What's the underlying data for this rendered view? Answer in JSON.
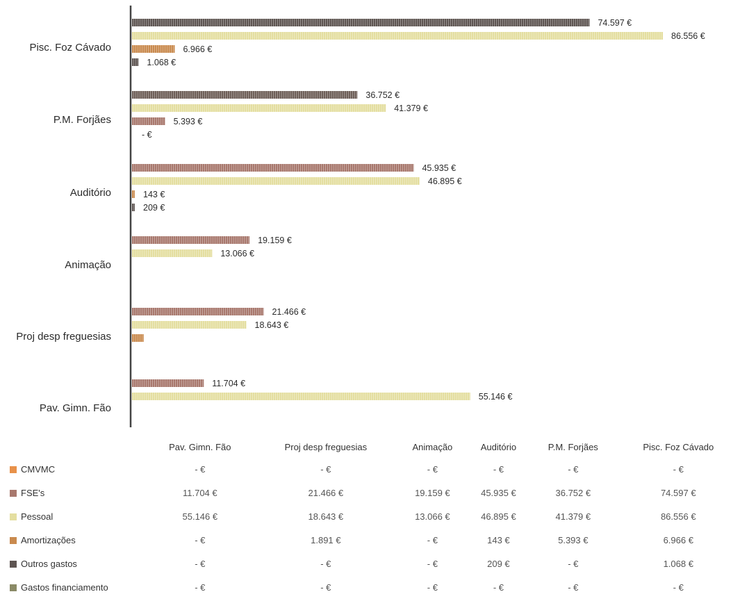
{
  "chart_data": {
    "type": "bar",
    "orientation": "horizontal",
    "categories": [
      "Pav. Gimn. Fão",
      "Proj desp freguesias",
      "Animação",
      "Auditório",
      "P.M. Forjães",
      "Pisc. Foz Cávado"
    ],
    "display_order_top_to_bottom": [
      "Pisc. Foz Cávado",
      "P.M. Forjães",
      "Auditório",
      "Animação",
      "Proj desp freguesias",
      "Pav. Gimn. Fão"
    ],
    "series": [
      {
        "name": "CMVMC",
        "color": "#e8914a",
        "values": [
          0,
          0,
          0,
          0,
          0,
          0
        ]
      },
      {
        "name": "FSE's",
        "color": "#a8786d",
        "values": [
          11704,
          21466,
          19159,
          45935,
          36752,
          74597
        ]
      },
      {
        "name": "Pessoal",
        "color": "#e4dea0",
        "values": [
          55146,
          18643,
          13066,
          46895,
          41379,
          86556
        ]
      },
      {
        "name": "Amortizações",
        "color": "#c98a4e",
        "values": [
          0,
          1891,
          0,
          143,
          5393,
          6966
        ]
      },
      {
        "name": "Outros gastos",
        "color": "#5e5552",
        "values": [
          0,
          0,
          0,
          209,
          0,
          1068
        ]
      },
      {
        "name": "Gastos  financiamento",
        "color": "#8a8a66",
        "values": [
          0,
          0,
          0,
          0,
          0,
          0
        ]
      }
    ],
    "xlim": [
      0,
      86556
    ],
    "grid": false,
    "legend": "data-table-below",
    "bar_labels": {
      "Pisc. Foz Cávado": [
        {
          "series": "Outros gastos (top)",
          "text": "74.597 €",
          "value": 74597,
          "color": "#5e5552"
        },
        {
          "series": "Pessoal",
          "text": "86.556 €",
          "value": 86556,
          "color": "#e4dea0"
        },
        {
          "series": "Amortizações",
          "text": "6.966 €",
          "value": 6966,
          "color": "#c98a4e"
        },
        {
          "series": "Outros gastos",
          "text": "1.068 €",
          "value": 1068,
          "color": "#5e5552"
        }
      ],
      "P.M. Forjães": [
        {
          "series": "FSE's",
          "text": "36.752 €",
          "value": 36752,
          "color": "#6e5f58"
        },
        {
          "series": "Pessoal",
          "text": "41.379 €",
          "value": 41379,
          "color": "#e4dea0"
        },
        {
          "series": "Amortizações",
          "text": "5.393 €",
          "value": 5393,
          "color": "#a8786d"
        },
        {
          "series": "Outros gastos",
          "text": "-  €",
          "value": 0,
          "color": "#5e5552"
        }
      ],
      "Auditório": [
        {
          "series": "FSE's",
          "text": "45.935 €",
          "value": 45935,
          "color": "#a8786d"
        },
        {
          "series": "Pessoal",
          "text": "46.895 €",
          "value": 46895,
          "color": "#e4dea0"
        },
        {
          "series": "Amortizações",
          "text": "143 €",
          "value": 143,
          "color": "#c98a4e"
        },
        {
          "series": "Outros gastos",
          "text": "209 €",
          "value": 209,
          "color": "#5e5552"
        }
      ],
      "Animação": [
        {
          "series": "FSE's",
          "text": "19.159 €",
          "value": 19159,
          "color": "#a8786d"
        },
        {
          "series": "Pessoal",
          "text": "13.066 €",
          "value": 13066,
          "color": "#e4dea0"
        }
      ],
      "Proj desp freguesias": [
        {
          "series": "FSE's",
          "text": "21.466 €",
          "value": 21466,
          "color": "#a8786d"
        },
        {
          "series": "Pessoal",
          "text": "18.643 €",
          "value": 18643,
          "color": "#e4dea0"
        },
        {
          "series": "Amortizações",
          "text": "",
          "value": 1891,
          "color": "#c98a4e"
        }
      ],
      "Pav. Gimn. Fão": [
        {
          "series": "FSE's",
          "text": "11.704 €",
          "value": 11704,
          "color": "#a8786d"
        },
        {
          "series": "Pessoal",
          "text": "55.146 €",
          "value": 55146,
          "color": "#e4dea0"
        }
      ]
    }
  },
  "table": {
    "columns": [
      "Pav. Gimn. Fão",
      "Proj desp freguesias",
      "Animação",
      "Auditório",
      "P.M. Forjães",
      "Pisc. Foz Cávado"
    ],
    "rows": [
      {
        "label": "CMVMC",
        "color": "#e8914a",
        "cells": [
          "-  €",
          "-  €",
          "-  €",
          "-  €",
          "-  €",
          "-  €"
        ]
      },
      {
        "label": "FSE's",
        "color": "#a8786d",
        "cells": [
          "11.704 €",
          "21.466 €",
          "19.159 €",
          "45.935 €",
          "36.752 €",
          "74.597 €"
        ]
      },
      {
        "label": "Pessoal",
        "color": "#e4dea0",
        "cells": [
          "55.146 €",
          "18.643 €",
          "13.066 €",
          "46.895 €",
          "41.379 €",
          "86.556 €"
        ]
      },
      {
        "label": "Amortizações",
        "color": "#c98a4e",
        "cells": [
          "-  €",
          "1.891 €",
          "-  €",
          "143 €",
          "5.393 €",
          "6.966 €"
        ]
      },
      {
        "label": "Outros gastos",
        "color": "#5e5552",
        "cells": [
          "-  €",
          "-  €",
          "-  €",
          "209 €",
          "-  €",
          "1.068 €"
        ]
      },
      {
        "label": "Gastos  financiamento",
        "color": "#8a8a66",
        "cells": [
          "-  €",
          "-  €",
          "-  €",
          "-  €",
          "-  €",
          "-  €"
        ]
      }
    ]
  }
}
